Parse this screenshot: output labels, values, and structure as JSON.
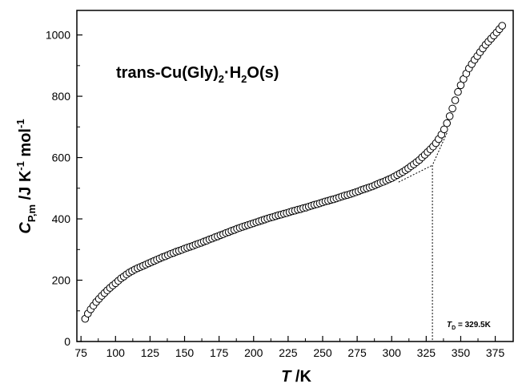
{
  "chart_data": {
    "type": "scatter",
    "title": "trans-Cu(Gly)2·H2O(s)",
    "title_parts": {
      "main": "trans-Cu(Gly)",
      "sub1": "2",
      "dot": "·",
      "h": "H",
      "sub2": "2",
      "tail": "O(s)"
    },
    "xlabel": "T /K",
    "xlabel_parts": {
      "var": "T",
      "unit": " /K"
    },
    "ylabel": "C_P,m /J K^-1 mol^-1",
    "ylabel_parts": {
      "var": "C",
      "sub": "P,m",
      "unit1": " /J K",
      "sup1": "-1",
      "unit2": " mol",
      "sup2": "-1"
    },
    "xlim": [
      72,
      388
    ],
    "ylim": [
      0,
      1080
    ],
    "x_ticks": [
      75,
      100,
      125,
      150,
      175,
      200,
      225,
      250,
      275,
      300,
      325,
      350,
      375
    ],
    "y_ticks": [
      0,
      200,
      400,
      600,
      800,
      1000
    ],
    "x_tick_labels": [
      "75",
      "100",
      "125",
      "150",
      "175",
      "200",
      "225",
      "250",
      "275",
      "300",
      "325",
      "350",
      "375"
    ],
    "y_tick_labels": [
      "0",
      "200",
      "400",
      "600",
      "800",
      "1000"
    ],
    "grid": false,
    "series": [
      {
        "marker": "open-circle",
        "x": [
          78,
          80,
          82,
          84,
          86,
          88,
          90,
          92,
          94,
          96,
          98,
          100,
          102,
          104,
          106,
          108,
          110,
          112,
          114,
          116,
          118,
          120,
          122,
          124,
          126,
          128,
          130,
          132,
          134,
          136,
          138,
          140,
          142,
          144,
          146,
          148,
          150,
          152,
          154,
          156,
          158,
          160,
          162,
          164,
          166,
          168,
          170,
          172,
          174,
          176,
          178,
          180,
          182,
          184,
          186,
          188,
          190,
          192,
          194,
          196,
          198,
          200,
          202,
          204,
          206,
          208,
          210,
          212,
          214,
          216,
          218,
          220,
          222,
          224,
          226,
          228,
          230,
          232,
          234,
          236,
          238,
          240,
          242,
          244,
          246,
          248,
          250,
          252,
          254,
          256,
          258,
          260,
          262,
          264,
          266,
          268,
          270,
          272,
          274,
          276,
          278,
          280,
          282,
          284,
          286,
          288,
          290,
          292,
          294,
          296,
          298,
          300,
          302,
          304,
          306,
          308,
          310,
          312,
          314,
          316,
          318,
          320,
          322,
          324,
          326,
          328,
          330,
          332,
          334,
          336,
          338,
          340,
          342,
          344,
          346,
          348,
          350,
          352,
          354,
          356,
          358,
          360,
          362,
          364,
          366,
          368,
          370,
          372,
          374,
          376,
          378,
          380
        ],
        "y": [
          74,
          91,
          105,
          117,
          129,
          139,
          149,
          158,
          167,
          175,
          183,
          190,
          198,
          206,
          212,
          219,
          225,
          230,
          235,
          239,
          243,
          247,
          251,
          255,
          259,
          263,
          267,
          271,
          275,
          278,
          282,
          286,
          289,
          293,
          296,
          299,
          303,
          306,
          309,
          312,
          316,
          319,
          322,
          326,
          329,
          333,
          336,
          340,
          343,
          347,
          350,
          354,
          357,
          361,
          364,
          368,
          371,
          374,
          377,
          380,
          383,
          386,
          389,
          392,
          395,
          398,
          401,
          404,
          406,
          409,
          412,
          414,
          417,
          419,
          422,
          425,
          427,
          430,
          432,
          435,
          437,
          440,
          443,
          446,
          448,
          451,
          454,
          457,
          459,
          462,
          464,
          467,
          470,
          473,
          476,
          478,
          481,
          484,
          487,
          490,
          494,
          497,
          500,
          503,
          506,
          510,
          514,
          518,
          521,
          525,
          529,
          533,
          538,
          543,
          548,
          553,
          559,
          565,
          572,
          578,
          585,
          592,
          601,
          609,
          618,
          627,
          636,
          647,
          660,
          675,
          692,
          712,
          735,
          760,
          787,
          814,
          836,
          856,
          874,
          891,
          905,
          919,
          931,
          944,
          956,
          968,
          978,
          988,
          998,
          1008,
          1019,
          1030
        ]
      }
    ],
    "annotations": {
      "transition_x": 329.5,
      "transition_y": 575,
      "label_var": "T",
      "label_sub": "D",
      "label_rest": " = 329.5K",
      "base_fit": {
        "x0": 305,
        "y0": 520
      },
      "rise_fit": {
        "x0": 340,
        "y0": 680
      }
    }
  }
}
